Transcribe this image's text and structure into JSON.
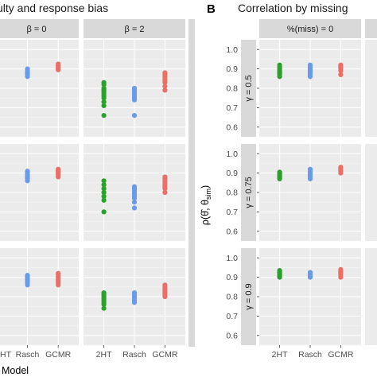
{
  "chart_data": [
    {
      "type": "scatter",
      "panel_letter": "",
      "title": "ulty and response bias",
      "xlabel": "Model",
      "ylabel": "",
      "categories": [
        "2HT",
        "Rasch",
        "GCMR"
      ],
      "x_tick_labels": [
        "HT",
        "Rasch",
        "GCMR",
        "2HT",
        "Rasch",
        "GCMR"
      ],
      "column_strips": [
        "β = 0",
        "β = 2"
      ],
      "row_strips": [
        "",
        "",
        ""
      ],
      "ylim": [
        0.55,
        1.05
      ],
      "grid": true,
      "panels": [
        {
          "col": 0,
          "row": 0,
          "points": {
            "Rasch": [
              0.86,
              0.87,
              0.875,
              0.88,
              0.885,
              0.89,
              0.9
            ],
            "GCMR": [
              0.895,
              0.9,
              0.905,
              0.91,
              0.915,
              0.92,
              0.925
            ]
          }
        },
        {
          "col": 1,
          "row": 0,
          "points": {
            "2HT": [
              0.66,
              0.71,
              0.73,
              0.75,
              0.76,
              0.77,
              0.78,
              0.79,
              0.8,
              0.82,
              0.83
            ],
            "Rasch": [
              0.66,
              0.74,
              0.75,
              0.76,
              0.77,
              0.78,
              0.79,
              0.8
            ],
            "GCMR": [
              0.79,
              0.81,
              0.83,
              0.84,
              0.85,
              0.86,
              0.87,
              0.88
            ]
          }
        },
        {
          "col": 0,
          "row": 1,
          "points": {
            "Rasch": [
              0.86,
              0.87,
              0.875,
              0.88,
              0.885,
              0.89,
              0.9,
              0.91
            ],
            "GCMR": [
              0.88,
              0.89,
              0.895,
              0.9,
              0.905,
              0.91,
              0.915,
              0.92
            ]
          }
        },
        {
          "col": 1,
          "row": 1,
          "points": {
            "2HT": [
              0.7,
              0.76,
              0.78,
              0.8,
              0.82,
              0.84,
              0.86
            ],
            "Rasch": [
              0.72,
              0.75,
              0.77,
              0.78,
              0.79,
              0.8,
              0.81,
              0.82,
              0.83
            ],
            "GCMR": [
              0.8,
              0.82,
              0.83,
              0.84,
              0.85,
              0.86,
              0.87,
              0.88
            ]
          }
        },
        {
          "col": 0,
          "row": 2,
          "points": {
            "Rasch": [
              0.86,
              0.87,
              0.88,
              0.89,
              0.895,
              0.9,
              0.905,
              0.91
            ],
            "GCMR": [
              0.86,
              0.87,
              0.88,
              0.89,
              0.9,
              0.91,
              0.92
            ]
          }
        },
        {
          "col": 1,
          "row": 2,
          "points": {
            "2HT": [
              0.74,
              0.76,
              0.77,
              0.78,
              0.79,
              0.8,
              0.81,
              0.82
            ],
            "Rasch": [
              0.77,
              0.78,
              0.79,
              0.8,
              0.81,
              0.82
            ],
            "GCMR": [
              0.8,
              0.81,
              0.82,
              0.83,
              0.84,
              0.85,
              0.86
            ]
          }
        }
      ]
    },
    {
      "type": "scatter",
      "panel_letter": "B",
      "title": "Correlation by missing",
      "xlabel": "",
      "ylabel": "ρ(θ̂, θsim)",
      "categories": [
        "2HT",
        "Rasch",
        "GCMR"
      ],
      "x_tick_labels": [
        "2HT",
        "Rasch",
        "GCMR"
      ],
      "column_strips": [
        "%(miss) = 0"
      ],
      "row_strips": [
        "γ = 0.5",
        "γ = 0.75",
        "γ = 0.9"
      ],
      "y_ticks": [
        "0.6",
        "0.7",
        "0.8",
        "0.9",
        "1.0"
      ],
      "ylim": [
        0.55,
        1.05
      ],
      "grid": true,
      "panels": [
        {
          "col": 0,
          "row": 0,
          "points": {
            "2HT": [
              0.86,
              0.87,
              0.875,
              0.88,
              0.885,
              0.89,
              0.9,
              0.91,
              0.92
            ],
            "Rasch": [
              0.86,
              0.87,
              0.88,
              0.885,
              0.89,
              0.9,
              0.91,
              0.92
            ],
            "GCMR": [
              0.87,
              0.89,
              0.9,
              0.905,
              0.91,
              0.915,
              0.92
            ]
          }
        },
        {
          "col": 0,
          "row": 1,
          "points": {
            "2HT": [
              0.87,
              0.875,
              0.88,
              0.885,
              0.89,
              0.895,
              0.9,
              0.905
            ],
            "Rasch": [
              0.87,
              0.88,
              0.89,
              0.9,
              0.91,
              0.92
            ],
            "GCMR": [
              0.9,
              0.91,
              0.915,
              0.92,
              0.925,
              0.93
            ]
          }
        },
        {
          "col": 0,
          "row": 2,
          "points": {
            "2HT": [
              0.9,
              0.905,
              0.91,
              0.915,
              0.92,
              0.925,
              0.93,
              0.935
            ],
            "Rasch": [
              0.9,
              0.905,
              0.91,
              0.915,
              0.92,
              0.925
            ],
            "GCMR": [
              0.9,
              0.91,
              0.92,
              0.925,
              0.93,
              0.935,
              0.94
            ]
          }
        }
      ]
    }
  ],
  "colors": {
    "2HT": "#2ca02c",
    "Rasch": "#6a9bea",
    "GCMR": "#ea6f66",
    "panel_bg": "#ebebeb",
    "strip_bg": "#d9d9d9",
    "grid_major": "#ffffff"
  }
}
